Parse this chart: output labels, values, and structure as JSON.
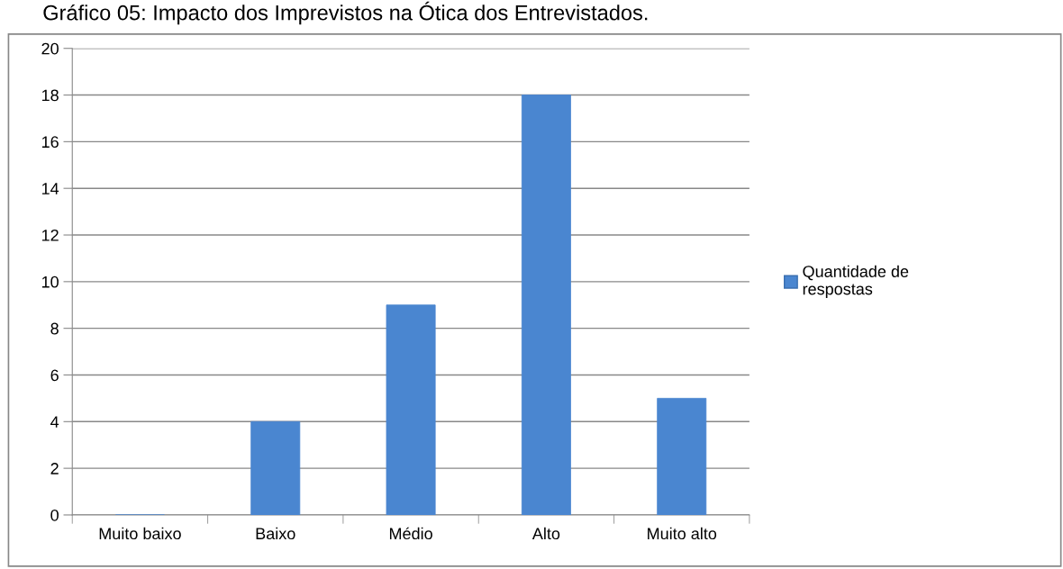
{
  "chart_data": {
    "type": "bar",
    "title": "Gráfico 05: Impacto dos Imprevistos na Ótica dos Entrevistados.",
    "categories": [
      "Muito baixo",
      "Baixo",
      "Médio",
      "Alto",
      "Muito alto"
    ],
    "series": [
      {
        "name": "Quantidade de\nrespostas",
        "color": "#4a86d0",
        "values": [
          0,
          4,
          9,
          18,
          5
        ]
      }
    ],
    "ylim": [
      0,
      20
    ],
    "yticks": [
      0,
      2,
      4,
      6,
      8,
      10,
      12,
      14,
      16,
      18,
      20
    ],
    "grid": "y",
    "legend": "right"
  }
}
